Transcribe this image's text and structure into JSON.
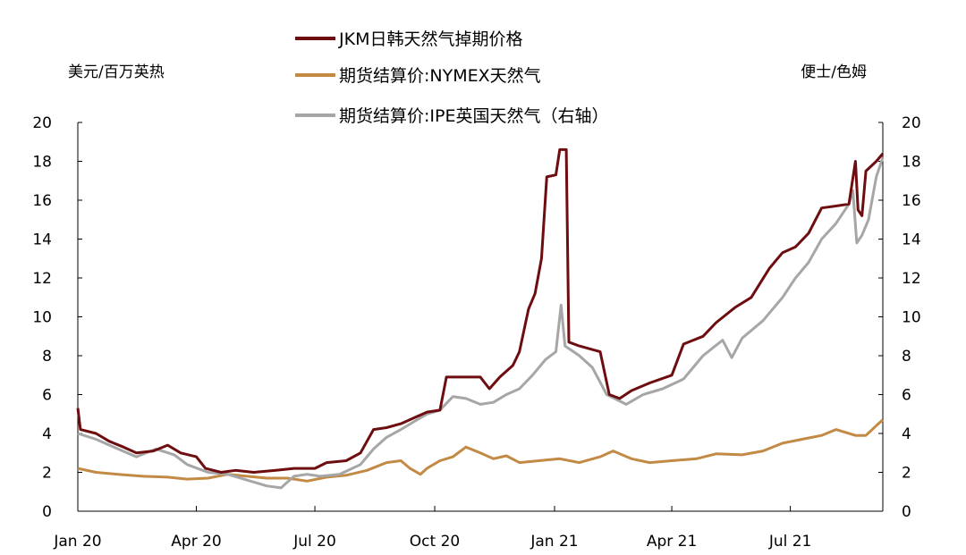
{
  "chart_data": {
    "type": "line",
    "y_left_unit": "美元/百万英热",
    "y_right_unit": "便士/色姆",
    "ylim": [
      0,
      20
    ],
    "y_right_lim": [
      0,
      20
    ],
    "y_ticks": [
      0,
      2,
      4,
      6,
      8,
      10,
      12,
      14,
      16,
      18,
      20
    ],
    "y_right_ticks": [
      0,
      2,
      4,
      6,
      8,
      10,
      12,
      14,
      16,
      18,
      20
    ],
    "xlim": [
      "2020-01-01",
      "2021-09-10"
    ],
    "x_ticks": [
      {
        "label": "Jan 20",
        "date": "2020-01-01"
      },
      {
        "label": "Apr 20",
        "date": "2020-04-01"
      },
      {
        "label": "Jul 20",
        "date": "2020-07-01"
      },
      {
        "label": "Oct 20",
        "date": "2020-10-01"
      },
      {
        "label": "Jan 21",
        "date": "2021-01-01"
      },
      {
        "label": "Apr 21",
        "date": "2021-04-01"
      },
      {
        "label": "Jul 21",
        "date": "2021-07-01"
      }
    ],
    "legend_position": "top",
    "series": [
      {
        "name": "JKM日韩天然气掉期价格",
        "color": "#6e0d10",
        "axis": "left",
        "points": [
          [
            "2020-01-01",
            5.3
          ],
          [
            "2020-01-03",
            4.2
          ],
          [
            "2020-01-15",
            4.0
          ],
          [
            "2020-01-25",
            3.6
          ],
          [
            "2020-02-05",
            3.3
          ],
          [
            "2020-02-15",
            3.0
          ],
          [
            "2020-02-28",
            3.1
          ],
          [
            "2020-03-10",
            3.4
          ],
          [
            "2020-03-20",
            3.0
          ],
          [
            "2020-04-01",
            2.8
          ],
          [
            "2020-04-08",
            2.2
          ],
          [
            "2020-04-20",
            2.0
          ],
          [
            "2020-05-01",
            2.1
          ],
          [
            "2020-05-15",
            2.0
          ],
          [
            "2020-06-01",
            2.1
          ],
          [
            "2020-06-15",
            2.2
          ],
          [
            "2020-07-01",
            2.2
          ],
          [
            "2020-07-10",
            2.5
          ],
          [
            "2020-07-25",
            2.6
          ],
          [
            "2020-08-05",
            3.0
          ],
          [
            "2020-08-15",
            4.2
          ],
          [
            "2020-08-25",
            4.3
          ],
          [
            "2020-09-05",
            4.5
          ],
          [
            "2020-09-15",
            4.8
          ],
          [
            "2020-09-25",
            5.1
          ],
          [
            "2020-10-05",
            5.2
          ],
          [
            "2020-10-10",
            6.9
          ],
          [
            "2020-10-25",
            6.9
          ],
          [
            "2020-11-05",
            6.9
          ],
          [
            "2020-11-12",
            6.3
          ],
          [
            "2020-11-20",
            6.9
          ],
          [
            "2020-11-30",
            7.5
          ],
          [
            "2020-12-05",
            8.2
          ],
          [
            "2020-12-12",
            10.4
          ],
          [
            "2020-12-17",
            11.2
          ],
          [
            "2020-12-22",
            13.0
          ],
          [
            "2020-12-26",
            17.2
          ],
          [
            "2021-01-02",
            17.3
          ],
          [
            "2021-01-05",
            18.6
          ],
          [
            "2021-01-10",
            18.6
          ],
          [
            "2021-01-12",
            8.7
          ],
          [
            "2021-01-20",
            8.5
          ],
          [
            "2021-02-05",
            8.2
          ],
          [
            "2021-02-12",
            6.0
          ],
          [
            "2021-02-20",
            5.8
          ],
          [
            "2021-03-01",
            6.2
          ],
          [
            "2021-03-15",
            6.6
          ],
          [
            "2021-04-01",
            7.0
          ],
          [
            "2021-04-10",
            8.6
          ],
          [
            "2021-04-25",
            9.0
          ],
          [
            "2021-05-05",
            9.7
          ],
          [
            "2021-05-20",
            10.5
          ],
          [
            "2021-06-01",
            11.0
          ],
          [
            "2021-06-15",
            12.5
          ],
          [
            "2021-06-25",
            13.3
          ],
          [
            "2021-07-05",
            13.6
          ],
          [
            "2021-07-15",
            14.3
          ],
          [
            "2021-07-25",
            15.6
          ],
          [
            "2021-08-05",
            15.7
          ],
          [
            "2021-08-15",
            15.8
          ],
          [
            "2021-08-20",
            18.0
          ],
          [
            "2021-08-22",
            15.5
          ],
          [
            "2021-08-25",
            15.2
          ],
          [
            "2021-08-28",
            17.5
          ],
          [
            "2021-09-05",
            18.0
          ],
          [
            "2021-09-10",
            18.4
          ]
        ]
      },
      {
        "name": "期货结算价:NYMEX天然气",
        "color": "#c28a45",
        "axis": "left",
        "points": [
          [
            "2020-01-01",
            2.2
          ],
          [
            "2020-01-15",
            2.0
          ],
          [
            "2020-02-01",
            1.9
          ],
          [
            "2020-02-20",
            1.8
          ],
          [
            "2020-03-10",
            1.75
          ],
          [
            "2020-03-25",
            1.65
          ],
          [
            "2020-04-10",
            1.7
          ],
          [
            "2020-04-25",
            1.9
          ],
          [
            "2020-05-10",
            1.8
          ],
          [
            "2020-05-25",
            1.7
          ],
          [
            "2020-06-10",
            1.7
          ],
          [
            "2020-06-25",
            1.55
          ],
          [
            "2020-07-10",
            1.75
          ],
          [
            "2020-07-25",
            1.85
          ],
          [
            "2020-08-10",
            2.1
          ],
          [
            "2020-08-25",
            2.5
          ],
          [
            "2020-09-05",
            2.6
          ],
          [
            "2020-09-12",
            2.2
          ],
          [
            "2020-09-20",
            1.9
          ],
          [
            "2020-09-25",
            2.2
          ],
          [
            "2020-10-05",
            2.6
          ],
          [
            "2020-10-15",
            2.8
          ],
          [
            "2020-10-25",
            3.3
          ],
          [
            "2020-11-05",
            3.0
          ],
          [
            "2020-11-15",
            2.7
          ],
          [
            "2020-11-25",
            2.85
          ],
          [
            "2020-12-05",
            2.5
          ],
          [
            "2020-12-20",
            2.6
          ],
          [
            "2021-01-05",
            2.7
          ],
          [
            "2021-01-20",
            2.5
          ],
          [
            "2021-02-05",
            2.8
          ],
          [
            "2021-02-15",
            3.1
          ],
          [
            "2021-03-01",
            2.7
          ],
          [
            "2021-03-15",
            2.5
          ],
          [
            "2021-04-01",
            2.6
          ],
          [
            "2021-04-20",
            2.7
          ],
          [
            "2021-05-05",
            2.95
          ],
          [
            "2021-05-25",
            2.9
          ],
          [
            "2021-06-10",
            3.1
          ],
          [
            "2021-06-25",
            3.5
          ],
          [
            "2021-07-10",
            3.7
          ],
          [
            "2021-07-25",
            3.9
          ],
          [
            "2021-08-05",
            4.2
          ],
          [
            "2021-08-20",
            3.9
          ],
          [
            "2021-08-28",
            3.9
          ],
          [
            "2021-09-05",
            4.4
          ],
          [
            "2021-09-10",
            4.7
          ]
        ]
      },
      {
        "name": "期货结算价:IPE英国天然气（右轴）",
        "color": "#a6a6a6",
        "axis": "right",
        "points": [
          [
            "2020-01-01",
            4.0
          ],
          [
            "2020-01-15",
            3.7
          ],
          [
            "2020-02-01",
            3.2
          ],
          [
            "2020-02-15",
            2.8
          ],
          [
            "2020-03-01",
            3.2
          ],
          [
            "2020-03-15",
            2.9
          ],
          [
            "2020-03-25",
            2.4
          ],
          [
            "2020-04-10",
            2.0
          ],
          [
            "2020-04-25",
            1.9
          ],
          [
            "2020-05-10",
            1.6
          ],
          [
            "2020-05-25",
            1.3
          ],
          [
            "2020-06-05",
            1.2
          ],
          [
            "2020-06-15",
            1.8
          ],
          [
            "2020-06-25",
            1.9
          ],
          [
            "2020-07-05",
            1.8
          ],
          [
            "2020-07-20",
            1.9
          ],
          [
            "2020-08-05",
            2.4
          ],
          [
            "2020-08-15",
            3.2
          ],
          [
            "2020-08-25",
            3.8
          ],
          [
            "2020-09-05",
            4.2
          ],
          [
            "2020-09-15",
            4.6
          ],
          [
            "2020-09-25",
            5.0
          ],
          [
            "2020-10-05",
            5.2
          ],
          [
            "2020-10-15",
            5.9
          ],
          [
            "2020-10-25",
            5.8
          ],
          [
            "2020-11-05",
            5.5
          ],
          [
            "2020-11-15",
            5.6
          ],
          [
            "2020-11-25",
            6.0
          ],
          [
            "2020-12-05",
            6.3
          ],
          [
            "2020-12-15",
            7.0
          ],
          [
            "2020-12-25",
            7.8
          ],
          [
            "2021-01-02",
            8.2
          ],
          [
            "2021-01-06",
            10.6
          ],
          [
            "2021-01-09",
            8.5
          ],
          [
            "2021-01-20",
            8.0
          ],
          [
            "2021-01-30",
            7.4
          ],
          [
            "2021-02-10",
            6.0
          ],
          [
            "2021-02-25",
            5.5
          ],
          [
            "2021-03-10",
            6.0
          ],
          [
            "2021-03-25",
            6.3
          ],
          [
            "2021-04-10",
            6.8
          ],
          [
            "2021-04-25",
            8.0
          ],
          [
            "2021-05-10",
            8.8
          ],
          [
            "2021-05-17",
            7.9
          ],
          [
            "2021-05-25",
            8.9
          ],
          [
            "2021-06-10",
            9.8
          ],
          [
            "2021-06-25",
            11.0
          ],
          [
            "2021-07-05",
            12.0
          ],
          [
            "2021-07-15",
            12.8
          ],
          [
            "2021-07-25",
            14.0
          ],
          [
            "2021-08-05",
            14.8
          ],
          [
            "2021-08-15",
            15.8
          ],
          [
            "2021-08-18",
            16.5
          ],
          [
            "2021-08-21",
            13.8
          ],
          [
            "2021-08-25",
            14.2
          ],
          [
            "2021-08-30",
            15.0
          ],
          [
            "2021-09-05",
            17.2
          ],
          [
            "2021-09-10",
            18.2
          ]
        ]
      }
    ]
  }
}
